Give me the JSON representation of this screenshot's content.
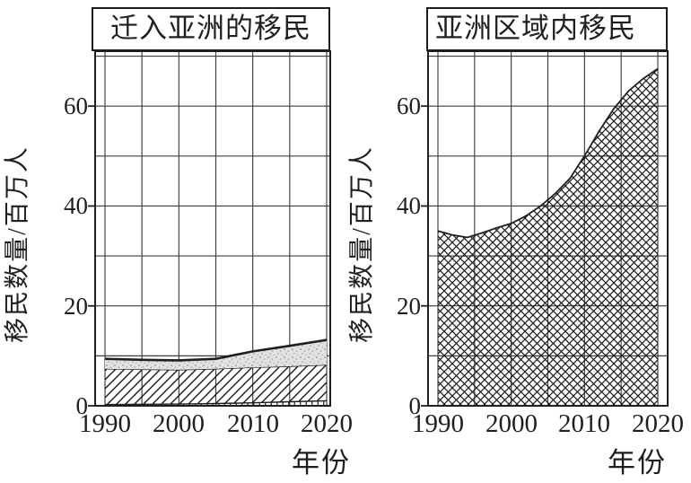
{
  "figure": {
    "background": "#ffffff",
    "ink_color": "#1f1f1f",
    "gridline_color": "#3d3d3d",
    "stipple_fill": "#e2e2e2"
  },
  "chart_data": [
    {
      "type": "area",
      "title": "迁入亚洲的移民",
      "xlabel": "年份",
      "ylabel": "移民数量/百万人",
      "stacked": true,
      "grid": true,
      "legend": "none",
      "xlim": [
        1990,
        2020
      ],
      "ylim": [
        0,
        71
      ],
      "x_gridline_step_years": 5,
      "y_gridline_step": 10,
      "x_tick_labels": [
        "1990",
        "2000",
        "2010",
        "2020"
      ],
      "y_tick_labels": [
        "0",
        "20",
        "40",
        "60"
      ],
      "x": [
        1990,
        1995,
        2000,
        2005,
        2010,
        2015,
        2020
      ],
      "series": [
        {
          "name": "bottom-band-vertical-hatch",
          "pattern": "vertical-hatch",
          "cumulative_top": [
            0.25,
            0.3,
            0.35,
            0.45,
            0.6,
            0.8,
            1.0
          ]
        },
        {
          "name": "middle-band-diagonal-hatch",
          "pattern": "diagonal-hatch",
          "cumulative_top": [
            7.4,
            7.3,
            7.2,
            7.4,
            7.7,
            7.9,
            8.2
          ]
        },
        {
          "name": "top-band-stipple",
          "pattern": "stipple",
          "top_edge": "thick",
          "cumulative_top": [
            9.4,
            9.2,
            9.1,
            9.4,
            10.9,
            12.0,
            13.2
          ]
        }
      ]
    },
    {
      "type": "area",
      "title": "亚洲区域内移民",
      "xlabel": "年份",
      "ylabel": "移民数量/百万人",
      "stacked": true,
      "grid": true,
      "legend": "none",
      "xlim": [
        1990,
        2020
      ],
      "ylim": [
        0,
        71
      ],
      "x_gridline_step_years": 5,
      "y_gridline_step": 10,
      "x_tick_labels": [
        "1990",
        "2000",
        "2010",
        "2020"
      ],
      "y_tick_labels": [
        "0",
        "20",
        "40",
        "60"
      ],
      "x": [
        1990,
        1992,
        1994,
        1996,
        1998,
        2000,
        2002,
        2004,
        2006,
        2008,
        2010,
        2012,
        2014,
        2016,
        2018,
        2020
      ],
      "series": [
        {
          "name": "intra-asia-migrants-crosshatch",
          "pattern": "crosshatch",
          "cumulative_top": [
            35,
            34.2,
            33.7,
            34.6,
            35.6,
            36.5,
            38,
            40,
            42.5,
            45.5,
            50,
            55,
            59.5,
            63,
            65.5,
            67.5
          ]
        }
      ]
    }
  ]
}
